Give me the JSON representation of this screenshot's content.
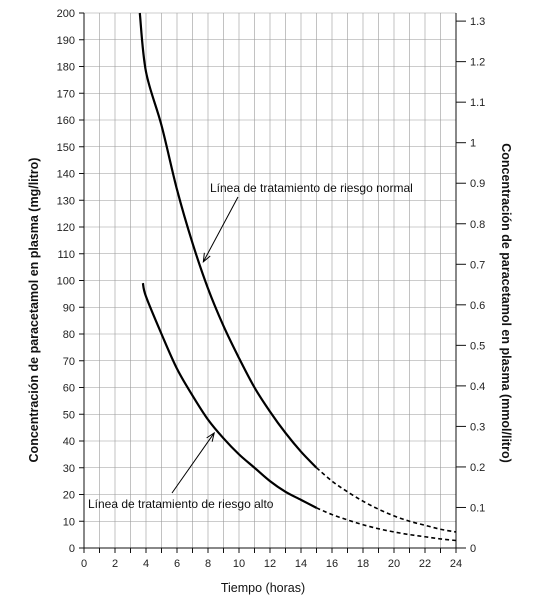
{
  "chart_data": {
    "type": "line",
    "xlabel": "Tiempo (horas)",
    "ylabel": "Concentración de paracetamol en plasma (mg/litro)",
    "y2label": "Concentración de paracetamol en plasma (mmol/litro)",
    "xlim": [
      0,
      24
    ],
    "ylim": [
      0,
      200
    ],
    "y2lim": [
      0,
      1.32
    ],
    "grid": true,
    "x_ticks": [
      0,
      2,
      4,
      6,
      8,
      10,
      12,
      14,
      16,
      18,
      20,
      22,
      24
    ],
    "y_ticks": [
      0,
      10,
      20,
      30,
      40,
      50,
      60,
      70,
      80,
      90,
      100,
      110,
      120,
      130,
      140,
      150,
      160,
      170,
      180,
      190,
      200
    ],
    "y2_ticks": [
      "0",
      "0.1",
      "0.2",
      "0.3",
      "0.4",
      "0.5",
      "0.6",
      "0.7",
      "0.8",
      "0.9",
      "1",
      "1.1",
      "1.2",
      "1.3"
    ],
    "y2_tick_values": [
      0,
      0.1,
      0.2,
      0.3,
      0.4,
      0.5,
      0.6,
      0.7,
      0.8,
      0.9,
      1.0,
      1.1,
      1.2,
      1.3
    ],
    "series": [
      {
        "name": "Línea de tratamiento de riesgo normal",
        "solid": {
          "x": [
            3.6,
            4,
            5,
            6,
            7,
            8,
            9,
            10,
            11,
            12,
            13,
            14,
            15
          ],
          "y": [
            200,
            178,
            158,
            134,
            114,
            97,
            83,
            71,
            60,
            51,
            43,
            36,
            30
          ]
        },
        "dashed": {
          "x": [
            15,
            16,
            17,
            18,
            19,
            20,
            21,
            22,
            23,
            24
          ],
          "y": [
            30,
            25,
            21,
            17.5,
            14.5,
            12,
            10,
            8.5,
            7,
            6
          ]
        }
      },
      {
        "name": "Línea de tratamiento de riesgo alto",
        "solid": {
          "x": [
            3.8,
            4,
            5,
            6,
            7,
            8,
            9,
            10,
            11,
            12,
            13,
            14,
            15
          ],
          "y": [
            99,
            94,
            80,
            67,
            57,
            48,
            41,
            35,
            30,
            25,
            21,
            18,
            15
          ]
        },
        "dashed": {
          "x": [
            15,
            16,
            17,
            18,
            19,
            20,
            21,
            22,
            23,
            24
          ],
          "y": [
            15,
            12.5,
            10.5,
            8.7,
            7.2,
            6,
            5,
            4.2,
            3.4,
            2.8
          ]
        }
      }
    ],
    "annotations": [
      {
        "text": "Línea de tratamiento de riesgo normal",
        "points_to": {
          "x": 7.7,
          "y": 107
        }
      },
      {
        "text": "Línea de tratamiento de riesgo alto",
        "points_to": {
          "x": 8.4,
          "y": 43
        }
      }
    ]
  }
}
